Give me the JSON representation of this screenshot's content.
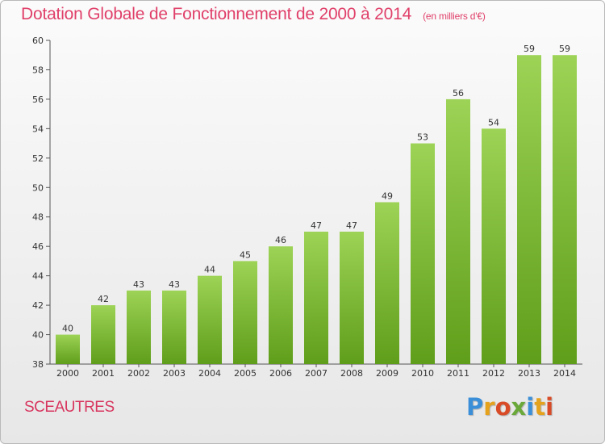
{
  "header": {
    "title": "Dotation Globale de Fonctionnement de 2000 à 2014",
    "subtitle": "(en milliers d'€)"
  },
  "footer": {
    "commune": "SCEAUTRES",
    "logo_text": "Proxiti",
    "logo_colors": [
      "#3b8fd8",
      "#e5a21c",
      "#d94b26",
      "#6aa83a",
      "#3b8fd8",
      "#e5a21c",
      "#d94b26"
    ]
  },
  "colors": {
    "bar_top": "#9dd356",
    "bar_bottom": "#5f9e1a",
    "title": "#e0406a",
    "axis": "#555555"
  },
  "chart_data": {
    "type": "bar",
    "title": "Dotation Globale de Fonctionnement de 2000 à 2014",
    "subtitle": "(en milliers d'€)",
    "xlabel": "",
    "ylabel": "",
    "categories": [
      "2000",
      "2001",
      "2002",
      "2003",
      "2004",
      "2005",
      "2006",
      "2007",
      "2008",
      "2009",
      "2010",
      "2011",
      "2012",
      "2013",
      "2014"
    ],
    "values": [
      40,
      42,
      43,
      43,
      44,
      45,
      46,
      47,
      47,
      49,
      53,
      56,
      54,
      59,
      59
    ],
    "ylim": [
      38,
      60
    ],
    "yticks": [
      38,
      40,
      42,
      44,
      46,
      48,
      50,
      52,
      54,
      56,
      58,
      60
    ],
    "grid": false,
    "legend": "none"
  }
}
